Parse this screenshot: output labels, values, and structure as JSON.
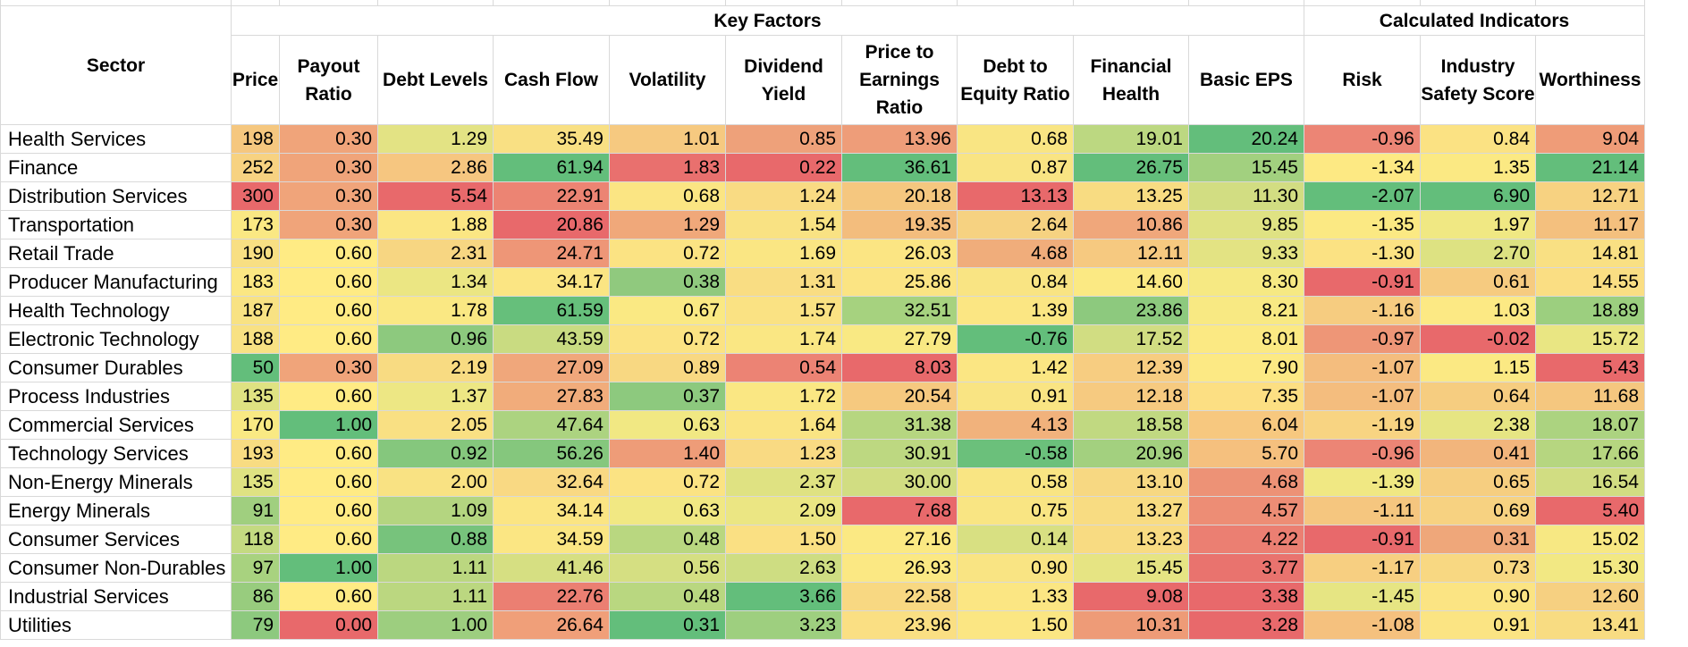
{
  "header": {
    "sector_label": "Sector",
    "group_key_factors": "Key Factors",
    "group_calculated": "Calculated Indicators",
    "columns": [
      "Price",
      "Payout Ratio",
      "Debt Levels",
      "Cash Flow",
      "Volatility",
      "Dividend Yield",
      "Price to Earnings Ratio",
      "Debt to Equity Ratio",
      "Financial Health",
      "Basic EPS",
      "Risk",
      "Industry Safety Score",
      "Worthiness"
    ]
  },
  "colors": {
    "red": "#e8696b",
    "yellow": "#ffeb84",
    "green": "#63be7b"
  },
  "rows": [
    {
      "sector": "Health Services",
      "cells": [
        {
          "v": "198",
          "c": "#f5c77f"
        },
        {
          "v": "0.30",
          "c": "#f0a47a"
        },
        {
          "v": "1.29",
          "c": "#e3e384"
        },
        {
          "v": "35.49",
          "c": "#f9e083"
        },
        {
          "v": "1.01",
          "c": "#f6c980"
        },
        {
          "v": "0.85",
          "c": "#eea17a"
        },
        {
          "v": "13.96",
          "c": "#ee9d79"
        },
        {
          "v": "0.68",
          "c": "#f9e583"
        },
        {
          "v": "19.01",
          "c": "#bcd881"
        },
        {
          "v": "20.24",
          "c": "#63be7b"
        },
        {
          "v": "-0.96",
          "c": "#ec8575"
        },
        {
          "v": "0.84",
          "c": "#fbe283"
        },
        {
          "v": "9.04",
          "c": "#ef9c78"
        }
      ]
    },
    {
      "sector": "Finance",
      "cells": [
        {
          "v": "252",
          "c": "#f7d281"
        },
        {
          "v": "0.30",
          "c": "#f0a47a"
        },
        {
          "v": "2.86",
          "c": "#f6c680"
        },
        {
          "v": "61.94",
          "c": "#63be7b"
        },
        {
          "v": "1.83",
          "c": "#e9706e"
        },
        {
          "v": "0.22",
          "c": "#e8696b"
        },
        {
          "v": "36.61",
          "c": "#63be7b"
        },
        {
          "v": "0.87",
          "c": "#f9e483"
        },
        {
          "v": "26.75",
          "c": "#63be7b"
        },
        {
          "v": "15.45",
          "c": "#a2d07f"
        },
        {
          "v": "-1.34",
          "c": "#fde983"
        },
        {
          "v": "1.35",
          "c": "#fbe983"
        },
        {
          "v": "21.14",
          "c": "#63be7b"
        }
      ]
    },
    {
      "sector": "Distribution Services",
      "cells": [
        {
          "v": "300",
          "c": "#e8696b"
        },
        {
          "v": "0.30",
          "c": "#f0a47a"
        },
        {
          "v": "5.54",
          "c": "#e8696b"
        },
        {
          "v": "22.91",
          "c": "#ec8473"
        },
        {
          "v": "0.68",
          "c": "#fbe583"
        },
        {
          "v": "1.24",
          "c": "#f9db83"
        },
        {
          "v": "20.18",
          "c": "#f5c77f"
        },
        {
          "v": "13.13",
          "c": "#e8696b"
        },
        {
          "v": "13.25",
          "c": "#f8dc82"
        },
        {
          "v": "11.30",
          "c": "#d2dd82"
        },
        {
          "v": "-2.07",
          "c": "#63be7b"
        },
        {
          "v": "6.90",
          "c": "#63be7b"
        },
        {
          "v": "12.71",
          "c": "#f7d281"
        }
      ]
    },
    {
      "sector": "Transportation",
      "cells": [
        {
          "v": "173",
          "c": "#fae883"
        },
        {
          "v": "0.30",
          "c": "#f0a47a"
        },
        {
          "v": "1.88",
          "c": "#fbe683"
        },
        {
          "v": "20.86",
          "c": "#e8696b"
        },
        {
          "v": "1.29",
          "c": "#f0a87a"
        },
        {
          "v": "1.54",
          "c": "#f9e283"
        },
        {
          "v": "19.35",
          "c": "#f3bd7d"
        },
        {
          "v": "2.64",
          "c": "#f6d281"
        },
        {
          "v": "10.86",
          "c": "#f0a77b"
        },
        {
          "v": "9.85",
          "c": "#dfe283"
        },
        {
          "v": "-1.35",
          "c": "#fbe983"
        },
        {
          "v": "1.97",
          "c": "#f0e883"
        },
        {
          "v": "11.17",
          "c": "#f4c07e"
        }
      ]
    },
    {
      "sector": "Retail Trade",
      "cells": [
        {
          "v": "190",
          "c": "#f8df83"
        },
        {
          "v": "0.60",
          "c": "#ffeb84"
        },
        {
          "v": "2.31",
          "c": "#f7d682"
        },
        {
          "v": "24.71",
          "c": "#ee9677"
        },
        {
          "v": "0.72",
          "c": "#fbe383"
        },
        {
          "v": "1.69",
          "c": "#fae683"
        },
        {
          "v": "26.03",
          "c": "#fbe583"
        },
        {
          "v": "4.68",
          "c": "#f0ad7b"
        },
        {
          "v": "12.11",
          "c": "#f6c980"
        },
        {
          "v": "9.33",
          "c": "#e3e383"
        },
        {
          "v": "-1.30",
          "c": "#fbe283"
        },
        {
          "v": "2.70",
          "c": "#dde282"
        },
        {
          "v": "14.81",
          "c": "#f9e083"
        }
      ]
    },
    {
      "sector": "Producer Manufacturing",
      "cells": [
        {
          "v": "183",
          "c": "#fbe783"
        },
        {
          "v": "0.60",
          "c": "#ffeb84"
        },
        {
          "v": "1.34",
          "c": "#ebe683"
        },
        {
          "v": "34.17",
          "c": "#fbe583"
        },
        {
          "v": "0.38",
          "c": "#90c97e"
        },
        {
          "v": "1.31",
          "c": "#f9dd83"
        },
        {
          "v": "25.86",
          "c": "#fbe483"
        },
        {
          "v": "0.84",
          "c": "#f9e483"
        },
        {
          "v": "14.60",
          "c": "#fbe983"
        },
        {
          "v": "8.30",
          "c": "#f6e983"
        },
        {
          "v": "-0.91",
          "c": "#e8696b"
        },
        {
          "v": "0.61",
          "c": "#f6cb80"
        },
        {
          "v": "14.55",
          "c": "#fade83"
        }
      ]
    },
    {
      "sector": "Health Technology",
      "cells": [
        {
          "v": "187",
          "c": "#f8e283"
        },
        {
          "v": "0.60",
          "c": "#ffeb84"
        },
        {
          "v": "1.78",
          "c": "#fae883"
        },
        {
          "v": "61.59",
          "c": "#66bf7b"
        },
        {
          "v": "0.67",
          "c": "#fae983"
        },
        {
          "v": "1.57",
          "c": "#fae283"
        },
        {
          "v": "32.51",
          "c": "#a6d27f"
        },
        {
          "v": "1.39",
          "c": "#fbe683"
        },
        {
          "v": "23.86",
          "c": "#8dc97e"
        },
        {
          "v": "8.21",
          "c": "#f8e983"
        },
        {
          "v": "-1.16",
          "c": "#f6cc80"
        },
        {
          "v": "1.03",
          "c": "#fce984"
        },
        {
          "v": "18.89",
          "c": "#9ccf7f"
        }
      ]
    },
    {
      "sector": "Electronic Technology",
      "cells": [
        {
          "v": "188",
          "c": "#f8e183"
        },
        {
          "v": "0.60",
          "c": "#ffeb84"
        },
        {
          "v": "0.96",
          "c": "#8dc97e"
        },
        {
          "v": "43.59",
          "c": "#c9db81"
        },
        {
          "v": "0.72",
          "c": "#fbe383"
        },
        {
          "v": "1.74",
          "c": "#fae783"
        },
        {
          "v": "27.79",
          "c": "#f9e983"
        },
        {
          "v": "-0.76",
          "c": "#63be7b"
        },
        {
          "v": "17.52",
          "c": "#d1dd82"
        },
        {
          "v": "8.01",
          "c": "#fbe983"
        },
        {
          "v": "-0.97",
          "c": "#ee9677"
        },
        {
          "v": "-0.02",
          "c": "#e8696b"
        },
        {
          "v": "15.72",
          "c": "#e9e683"
        }
      ]
    },
    {
      "sector": "Consumer Durables",
      "cells": [
        {
          "v": "50",
          "c": "#63be7b"
        },
        {
          "v": "0.30",
          "c": "#f0a47a"
        },
        {
          "v": "2.19",
          "c": "#f8db82"
        },
        {
          "v": "27.09",
          "c": "#f0a77b"
        },
        {
          "v": "0.89",
          "c": "#f8d882"
        },
        {
          "v": "0.54",
          "c": "#ec8374"
        },
        {
          "v": "8.03",
          "c": "#e8696b"
        },
        {
          "v": "1.42",
          "c": "#fbe683"
        },
        {
          "v": "12.39",
          "c": "#f7cd81"
        },
        {
          "v": "7.90",
          "c": "#fce984"
        },
        {
          "v": "-1.07",
          "c": "#f4bd7e"
        },
        {
          "v": "1.15",
          "c": "#fbe983"
        },
        {
          "v": "5.43",
          "c": "#e8696b"
        }
      ]
    },
    {
      "sector": "Process Industries",
      "cells": [
        {
          "v": "135",
          "c": "#dfe282"
        },
        {
          "v": "0.60",
          "c": "#ffeb84"
        },
        {
          "v": "1.37",
          "c": "#ede784"
        },
        {
          "v": "27.83",
          "c": "#f1ac7b"
        },
        {
          "v": "0.37",
          "c": "#8dc97e"
        },
        {
          "v": "1.72",
          "c": "#fae783"
        },
        {
          "v": "20.54",
          "c": "#f6c97f"
        },
        {
          "v": "0.91",
          "c": "#f9e483"
        },
        {
          "v": "12.18",
          "c": "#f6ca80"
        },
        {
          "v": "7.35",
          "c": "#fcdf83"
        },
        {
          "v": "-1.07",
          "c": "#f4bd7e"
        },
        {
          "v": "0.64",
          "c": "#f6cd80"
        },
        {
          "v": "11.68",
          "c": "#f5c77f"
        }
      ]
    },
    {
      "sector": "Commercial Services",
      "cells": [
        {
          "v": "170",
          "c": "#f9e983"
        },
        {
          "v": "1.00",
          "c": "#63be7b"
        },
        {
          "v": "2.05",
          "c": "#f9e083"
        },
        {
          "v": "47.64",
          "c": "#acd380"
        },
        {
          "v": "0.63",
          "c": "#f1e883"
        },
        {
          "v": "1.64",
          "c": "#fae483"
        },
        {
          "v": "31.38",
          "c": "#b6d680"
        },
        {
          "v": "4.13",
          "c": "#f1b27c"
        },
        {
          "v": "18.58",
          "c": "#c1d981"
        },
        {
          "v": "6.04",
          "c": "#f7c87f"
        },
        {
          "v": "-1.19",
          "c": "#f8d482"
        },
        {
          "v": "2.38",
          "c": "#e6e583"
        },
        {
          "v": "18.07",
          "c": "#acd380"
        }
      ]
    },
    {
      "sector": "Technology Services",
      "cells": [
        {
          "v": "193",
          "c": "#f8dc82"
        },
        {
          "v": "0.60",
          "c": "#ffeb84"
        },
        {
          "v": "0.92",
          "c": "#85c77d"
        },
        {
          "v": "56.26",
          "c": "#85c77d"
        },
        {
          "v": "1.40",
          "c": "#ee9c78"
        },
        {
          "v": "1.23",
          "c": "#f9da83"
        },
        {
          "v": "30.91",
          "c": "#bdd881"
        },
        {
          "v": "-0.58",
          "c": "#6bc07b"
        },
        {
          "v": "20.96",
          "c": "#a3d07f"
        },
        {
          "v": "5.70",
          "c": "#f5c07e"
        },
        {
          "v": "-0.96",
          "c": "#ec8575"
        },
        {
          "v": "0.41",
          "c": "#f2b57c"
        },
        {
          "v": "17.66",
          "c": "#b6d680"
        }
      ]
    },
    {
      "sector": "Non-Energy Minerals",
      "cells": [
        {
          "v": "135",
          "c": "#dfe282"
        },
        {
          "v": "0.60",
          "c": "#ffeb84"
        },
        {
          "v": "2.00",
          "c": "#f9e283"
        },
        {
          "v": "32.64",
          "c": "#f9d983"
        },
        {
          "v": "0.72",
          "c": "#fbe383"
        },
        {
          "v": "2.37",
          "c": "#dfe282"
        },
        {
          "v": "30.00",
          "c": "#d1dd82"
        },
        {
          "v": "0.58",
          "c": "#f9e583"
        },
        {
          "v": "13.10",
          "c": "#f7d882"
        },
        {
          "v": "4.68",
          "c": "#ed9276"
        },
        {
          "v": "-1.39",
          "c": "#f0e883"
        },
        {
          "v": "0.65",
          "c": "#f6ce80"
        },
        {
          "v": "16.54",
          "c": "#d1dd82"
        }
      ]
    },
    {
      "sector": "Energy Minerals",
      "cells": [
        {
          "v": "91",
          "c": "#a0cf7f"
        },
        {
          "v": "0.60",
          "c": "#ffeb84"
        },
        {
          "v": "1.09",
          "c": "#b4d580"
        },
        {
          "v": "34.14",
          "c": "#fbe583"
        },
        {
          "v": "0.63",
          "c": "#f1e883"
        },
        {
          "v": "2.09",
          "c": "#ebe683"
        },
        {
          "v": "7.68",
          "c": "#e8696b"
        },
        {
          "v": "0.75",
          "c": "#f9e583"
        },
        {
          "v": "13.27",
          "c": "#f8dc82"
        },
        {
          "v": "4.57",
          "c": "#ed8d75"
        },
        {
          "v": "-1.11",
          "c": "#f5c67f"
        },
        {
          "v": "0.69",
          "c": "#f7d281"
        },
        {
          "v": "5.40",
          "c": "#e8696b"
        }
      ]
    },
    {
      "sector": "Consumer Services",
      "cells": [
        {
          "v": "118",
          "c": "#c4da81"
        },
        {
          "v": "0.60",
          "c": "#ffeb84"
        },
        {
          "v": "0.88",
          "c": "#77c37c"
        },
        {
          "v": "34.59",
          "c": "#fbe683"
        },
        {
          "v": "0.48",
          "c": "#b9d780"
        },
        {
          "v": "1.50",
          "c": "#fae083"
        },
        {
          "v": "27.16",
          "c": "#fbe983"
        },
        {
          "v": "0.14",
          "c": "#d8e082"
        },
        {
          "v": "13.23",
          "c": "#f8db82"
        },
        {
          "v": "4.22",
          "c": "#eb7f72"
        },
        {
          "v": "-0.91",
          "c": "#e8696b"
        },
        {
          "v": "0.31",
          "c": "#efa77a"
        },
        {
          "v": "15.02",
          "c": "#f7e883"
        }
      ]
    },
    {
      "sector": "Consumer Non-Durables",
      "cells": [
        {
          "v": "97",
          "c": "#a8d27f"
        },
        {
          "v": "1.00",
          "c": "#63be7b"
        },
        {
          "v": "1.11",
          "c": "#bbd780"
        },
        {
          "v": "41.46",
          "c": "#d6df82"
        },
        {
          "v": "0.56",
          "c": "#d5df82"
        },
        {
          "v": "2.63",
          "c": "#cedd82"
        },
        {
          "v": "26.93",
          "c": "#fbe883"
        },
        {
          "v": "0.90",
          "c": "#f9e483"
        },
        {
          "v": "15.45",
          "c": "#e6e483"
        },
        {
          "v": "3.77",
          "c": "#e9736e"
        },
        {
          "v": "-1.17",
          "c": "#f7cf81"
        },
        {
          "v": "0.73",
          "c": "#f8d882"
        },
        {
          "v": "15.30",
          "c": "#f2e883"
        }
      ]
    },
    {
      "sector": "Industrial Services",
      "cells": [
        {
          "v": "86",
          "c": "#98cc7e"
        },
        {
          "v": "0.60",
          "c": "#ffeb84"
        },
        {
          "v": "1.11",
          "c": "#bbd780"
        },
        {
          "v": "22.76",
          "c": "#eb7f72"
        },
        {
          "v": "0.48",
          "c": "#b9d780"
        },
        {
          "v": "3.66",
          "c": "#63be7b"
        },
        {
          "v": "22.58",
          "c": "#f8d882"
        },
        {
          "v": "1.33",
          "c": "#fbe683"
        },
        {
          "v": "9.08",
          "c": "#e8696b"
        },
        {
          "v": "3.38",
          "c": "#e8696b"
        },
        {
          "v": "-1.45",
          "c": "#e6e583"
        },
        {
          "v": "0.90",
          "c": "#fbe483"
        },
        {
          "v": "12.60",
          "c": "#f6d081"
        }
      ]
    },
    {
      "sector": "Utilities",
      "cells": [
        {
          "v": "79",
          "c": "#8dc97e"
        },
        {
          "v": "0.00",
          "c": "#e8696b"
        },
        {
          "v": "1.00",
          "c": "#9dce7f"
        },
        {
          "v": "26.64",
          "c": "#f09f79"
        },
        {
          "v": "0.31",
          "c": "#63be7b"
        },
        {
          "v": "3.23",
          "c": "#9ecf7f"
        },
        {
          "v": "23.96",
          "c": "#fadf83"
        },
        {
          "v": "1.50",
          "c": "#fbe683"
        },
        {
          "v": "10.31",
          "c": "#ee9b77"
        },
        {
          "v": "3.28",
          "c": "#e8696b"
        },
        {
          "v": "-1.08",
          "c": "#f5c17e"
        },
        {
          "v": "0.91",
          "c": "#fbe483"
        },
        {
          "v": "13.41",
          "c": "#f8dc82"
        }
      ]
    }
  ]
}
